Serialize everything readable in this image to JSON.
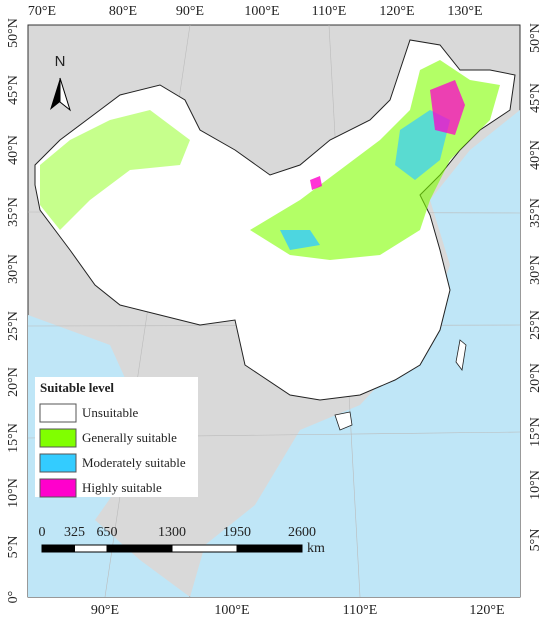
{
  "map": {
    "top_labels": [
      "70°E",
      "80°E",
      "90°E",
      "100°E",
      "110°E",
      "120°E",
      "130°E"
    ],
    "bottom_labels": [
      "90°E",
      "100°E",
      "110°E",
      "120°E"
    ],
    "left_labels": [
      "50°N",
      "45°N",
      "40°N",
      "35°N",
      "30°N",
      "25°N",
      "20°N",
      "15°N",
      "10°N",
      "5°N",
      "0°"
    ],
    "right_labels": [
      "50°N",
      "45°N",
      "40°N",
      "35°N",
      "30°N",
      "25°N",
      "20°N",
      "15°N",
      "10°N",
      "5°N"
    ],
    "north": "N"
  },
  "legend": {
    "title": "Suitable level",
    "items": [
      {
        "label": "Unsuitable",
        "color": "#ffffff"
      },
      {
        "label": "Generally suitable",
        "color": "#80ff00"
      },
      {
        "label": "Moderately suitable",
        "color": "#33ccff"
      },
      {
        "label": "Highly suitable",
        "color": "#ff00cc"
      }
    ]
  },
  "scale_bar": {
    "ticks": [
      0,
      325,
      650,
      1300,
      1950,
      2600
    ],
    "unit": "km"
  }
}
